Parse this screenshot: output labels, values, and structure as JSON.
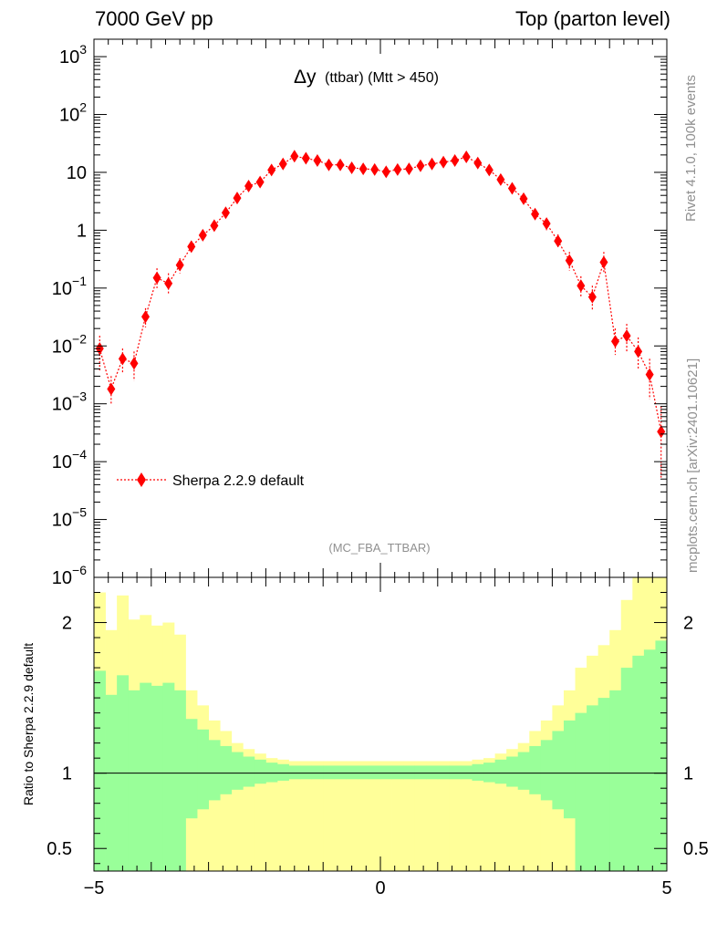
{
  "header": {
    "left": "7000 GeV pp",
    "right": "Top (parton level)"
  },
  "title": {
    "main": "Δy",
    "sub": "(ttbar) (Mtt > 450)"
  },
  "side_labels": {
    "rivet": "Rivet 4.1.0,  100k events",
    "mcplots": "mcplots.cern.ch [arXiv:2401.10621]"
  },
  "analysis_id": "(MC_FBA_TTBAR)",
  "legend": {
    "entry": "Sherpa 2.2.9 default",
    "color": "#ff0000"
  },
  "ratio_ylabel": "Ratio to Sherpa 2.2.9 default",
  "chart_data": {
    "type": "line",
    "xlim": [
      -5,
      5
    ],
    "ylim_log": [
      1e-06,
      2000
    ],
    "ylim_ratio": [
      0.35,
      2.3
    ],
    "x_ticks": [
      "−5",
      "0",
      "5"
    ],
    "y_ticks_main": [
      {
        "base": "10",
        "exp": "3",
        "value": 1000
      },
      {
        "base": "10",
        "exp": "2",
        "value": 100
      },
      {
        "base": "10",
        "exp": "",
        "value": 10
      },
      {
        "base": "1",
        "exp": "",
        "value": 1
      },
      {
        "base": "10",
        "exp": "−1",
        "value": 0.1
      },
      {
        "base": "10",
        "exp": "−2",
        "value": 0.01
      },
      {
        "base": "10",
        "exp": "−3",
        "value": 0.001
      },
      {
        "base": "10",
        "exp": "−4",
        "value": 0.0001
      },
      {
        "base": "10",
        "exp": "−5",
        "value": 1e-05
      },
      {
        "base": "10",
        "exp": "−6",
        "value": 1e-06
      }
    ],
    "y_ticks_ratio": [
      {
        "label": "2",
        "value": 2
      },
      {
        "label": "1",
        "value": 1
      },
      {
        "label": "0.5",
        "value": 0.5
      }
    ],
    "series": [
      {
        "name": "Sherpa 2.2.9 default",
        "color": "#ff0000",
        "x": [
          -4.9,
          -4.7,
          -4.5,
          -4.3,
          -4.1,
          -3.9,
          -3.7,
          -3.5,
          -3.3,
          -3.1,
          -2.9,
          -2.7,
          -2.5,
          -2.3,
          -2.1,
          -1.9,
          -1.7,
          -1.5,
          -1.3,
          -1.1,
          -0.9,
          -0.7,
          -0.5,
          -0.3,
          -0.1,
          0.1,
          0.3,
          0.5,
          0.7,
          0.9,
          1.1,
          1.3,
          1.5,
          1.7,
          1.9,
          2.1,
          2.3,
          2.5,
          2.7,
          2.9,
          3.1,
          3.3,
          3.5,
          3.7,
          3.9,
          4.1,
          4.3,
          4.5,
          4.7,
          4.9
        ],
        "values": [
          0.009,
          0.0018,
          0.006,
          0.005,
          0.032,
          0.15,
          0.12,
          0.25,
          0.52,
          0.82,
          1.2,
          2.0,
          3.6,
          5.8,
          6.8,
          11,
          14,
          19,
          17.5,
          16,
          13.5,
          13.5,
          12,
          11.5,
          11.2,
          10.2,
          11.2,
          11.5,
          13,
          14,
          15,
          16,
          18.5,
          14.5,
          11,
          7.5,
          5.3,
          3.5,
          1.9,
          1.3,
          0.65,
          0.3,
          0.11,
          0.07,
          0.28,
          0.012,
          0.015,
          0.008,
          0.0032,
          0.00033
        ],
        "err_hi": [
          0.015,
          0.003,
          0.009,
          0.008,
          0.045,
          0.22,
          0.18,
          0.33,
          0.65,
          1.0,
          1.4,
          2.3,
          4.0,
          6.4,
          7.5,
          12,
          15.2,
          20.5,
          19,
          17.3,
          14.7,
          14.7,
          13.0,
          12.4,
          12.1,
          11.0,
          12.1,
          12.4,
          14.1,
          15.2,
          16.3,
          17.4,
          20,
          15.8,
          12.1,
          8.3,
          6.0,
          4.0,
          2.3,
          1.6,
          0.85,
          0.42,
          0.16,
          0.11,
          0.42,
          0.02,
          0.024,
          0.014,
          0.006,
          0.0009
        ],
        "err_lo": [
          0.0035,
          0.001,
          0.0035,
          0.0025,
          0.021,
          0.1,
          0.08,
          0.18,
          0.42,
          0.68,
          1.0,
          1.7,
          3.2,
          5.2,
          6.1,
          10,
          12.8,
          17.5,
          16,
          14.7,
          12.4,
          12.4,
          11.0,
          10.6,
          10.3,
          9.4,
          10.3,
          10.6,
          12,
          12.8,
          13.7,
          14.6,
          17,
          13.2,
          9.9,
          6.7,
          4.6,
          3.0,
          1.5,
          1.0,
          0.48,
          0.2,
          0.07,
          0.04,
          0.18,
          0.007,
          0.008,
          0.004,
          0.0012,
          5e-05
        ]
      }
    ],
    "ratio_bands": {
      "edges": [
        -5.0,
        -4.8,
        -4.6,
        -4.4,
        -4.2,
        -4.0,
        -3.8,
        -3.6,
        -3.4,
        -3.2,
        -3.0,
        -2.8,
        -2.6,
        -2.4,
        -2.2,
        -2.0,
        -1.8,
        -1.6,
        -1.4,
        -1.2,
        -1.0,
        -0.8,
        -0.6,
        -0.4,
        -0.2,
        0.0,
        0.2,
        0.4,
        0.6,
        0.8,
        1.0,
        1.2,
        1.4,
        1.6,
        1.8,
        2.0,
        2.2,
        2.4,
        2.6,
        2.8,
        3.0,
        3.2,
        3.4,
        3.6,
        3.8,
        4.0,
        4.2,
        4.4,
        4.6,
        4.8,
        5.0
      ],
      "green_hi": [
        1.68,
        1.52,
        1.65,
        1.55,
        1.6,
        1.58,
        1.6,
        1.55,
        1.36,
        1.29,
        1.22,
        1.18,
        1.14,
        1.11,
        1.09,
        1.07,
        1.06,
        1.05,
        1.05,
        1.05,
        1.05,
        1.05,
        1.05,
        1.05,
        1.05,
        1.05,
        1.05,
        1.05,
        1.05,
        1.05,
        1.05,
        1.05,
        1.05,
        1.06,
        1.07,
        1.09,
        1.11,
        1.14,
        1.18,
        1.22,
        1.28,
        1.35,
        1.4,
        1.45,
        1.5,
        1.55,
        1.7,
        1.78,
        1.82,
        1.88
      ],
      "green_lo": [
        0.35,
        0.35,
        0.35,
        0.35,
        0.35,
        0.35,
        0.35,
        0.35,
        0.7,
        0.76,
        0.82,
        0.86,
        0.89,
        0.91,
        0.93,
        0.94,
        0.95,
        0.96,
        0.96,
        0.96,
        0.96,
        0.96,
        0.96,
        0.96,
        0.96,
        0.96,
        0.96,
        0.96,
        0.96,
        0.96,
        0.96,
        0.96,
        0.96,
        0.95,
        0.94,
        0.93,
        0.91,
        0.89,
        0.86,
        0.82,
        0.76,
        0.7,
        0.35,
        0.35,
        0.35,
        0.35,
        0.35,
        0.35,
        0.35,
        0.35
      ],
      "yellow_hi": [
        2.2,
        1.95,
        2.18,
        2.02,
        2.05,
        1.98,
        2.0,
        1.92,
        1.55,
        1.45,
        1.35,
        1.28,
        1.2,
        1.16,
        1.13,
        1.1,
        1.09,
        1.08,
        1.08,
        1.08,
        1.08,
        1.08,
        1.08,
        1.08,
        1.08,
        1.08,
        1.08,
        1.08,
        1.08,
        1.08,
        1.08,
        1.08,
        1.08,
        1.09,
        1.1,
        1.13,
        1.16,
        1.2,
        1.28,
        1.35,
        1.45,
        1.55,
        1.7,
        1.78,
        1.85,
        1.95,
        2.15,
        2.3,
        2.3,
        2.3
      ],
      "yellow_lo": [
        0.35,
        0.35,
        0.35,
        0.35,
        0.35,
        0.35,
        0.35,
        0.35,
        0.35,
        0.35,
        0.35,
        0.35,
        0.35,
        0.35,
        0.35,
        0.35,
        0.35,
        0.35,
        0.35,
        0.35,
        0.35,
        0.35,
        0.35,
        0.35,
        0.35,
        0.35,
        0.35,
        0.35,
        0.35,
        0.35,
        0.35,
        0.35,
        0.35,
        0.35,
        0.35,
        0.35,
        0.35,
        0.35,
        0.35,
        0.35,
        0.35,
        0.35,
        0.35,
        0.35,
        0.35,
        0.35,
        0.35,
        0.35,
        0.35,
        0.35
      ],
      "yellow_color": "#ffff99",
      "green_color": "#99ff99"
    }
  }
}
